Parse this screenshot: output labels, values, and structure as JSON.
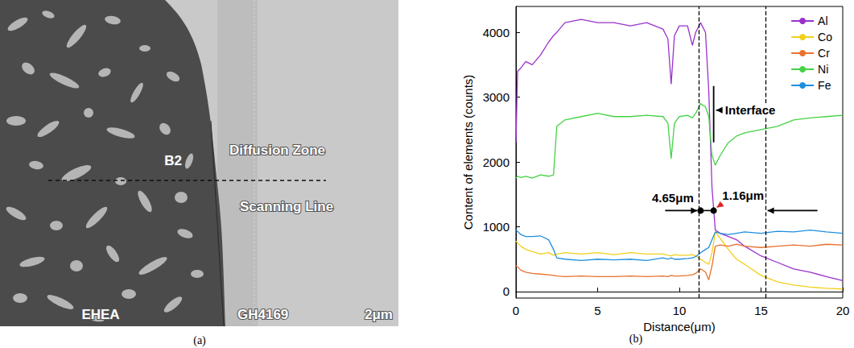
{
  "image_panel": {
    "caption": "(a)",
    "labels": [
      "Diffusion Zone",
      "B2",
      "Scanning Line",
      "EHEA",
      "GH4169"
    ],
    "scale_bar": "2μm"
  },
  "chart_data": {
    "type": "line",
    "caption": "(b)",
    "x_label": "Distance(μm)",
    "y_label": "Content of elements (counts)",
    "x": [
      0,
      0.1,
      0.3,
      0.6,
      1,
      1.5,
      2,
      2.3,
      2.5,
      3,
      4,
      5,
      6,
      7,
      8,
      9,
      9.3,
      9.5,
      9.7,
      10,
      10.5,
      10.8,
      11,
      11.3,
      11.6,
      11.8,
      12,
      12.2,
      12.5,
      13,
      13.5,
      14,
      15,
      16,
      17,
      18,
      19,
      20
    ],
    "series": [
      {
        "name": "Al",
        "color": "#9932cc",
        "values": [
          2300,
          3400,
          3450,
          3550,
          3500,
          3650,
          3850,
          3950,
          4000,
          4150,
          4200,
          4150,
          4150,
          4100,
          4150,
          4050,
          3900,
          3200,
          3950,
          4100,
          4100,
          3800,
          4000,
          4150,
          4000,
          3100,
          1600,
          950,
          900,
          850,
          800,
          700,
          550,
          450,
          350,
          300,
          230,
          170
        ]
      },
      {
        "name": "Co",
        "color": "#f2d01a",
        "values": [
          780,
          750,
          700,
          650,
          620,
          580,
          600,
          560,
          580,
          600,
          580,
          600,
          570,
          600,
          580,
          580,
          560,
          550,
          570,
          560,
          560,
          570,
          550,
          500,
          450,
          420,
          600,
          920,
          820,
          650,
          500,
          420,
          250,
          150,
          100,
          70,
          50,
          40
        ]
      },
      {
        "name": "Cr",
        "color": "#e8712e",
        "values": [
          400,
          380,
          330,
          300,
          280,
          270,
          260,
          250,
          240,
          230,
          240,
          230,
          230,
          240,
          230,
          240,
          230,
          250,
          240,
          240,
          250,
          260,
          280,
          350,
          300,
          180,
          400,
          700,
          720,
          700,
          730,
          700,
          680,
          700,
          720,
          700,
          730,
          720
        ]
      },
      {
        "name": "Ni",
        "color": "#45d245",
        "values": [
          1750,
          1780,
          1760,
          1780,
          1750,
          1800,
          1780,
          1800,
          2550,
          2650,
          2700,
          2750,
          2700,
          2700,
          2720,
          2700,
          2600,
          2050,
          2600,
          2700,
          2720,
          2680,
          2750,
          2900,
          2850,
          2700,
          2100,
          1950,
          2100,
          2300,
          2400,
          2450,
          2500,
          2550,
          2650,
          2680,
          2700,
          2720
        ]
      },
      {
        "name": "Fe",
        "color": "#1e8fe0",
        "values": [
          950,
          930,
          880,
          850,
          850,
          860,
          800,
          650,
          520,
          500,
          480,
          500,
          490,
          500,
          480,
          520,
          500,
          520,
          500,
          500,
          510,
          520,
          540,
          600,
          650,
          680,
          800,
          920,
          900,
          880,
          900,
          920,
          900,
          930,
          920,
          950,
          920,
          900
        ]
      }
    ],
    "xlim": [
      0,
      20
    ],
    "xticks": [
      0,
      5,
      10,
      15,
      20
    ],
    "ylim": [
      -100,
      4400
    ],
    "yticks": [
      0,
      1000,
      2000,
      3000,
      4000
    ],
    "grid": false,
    "legend": "upper right",
    "reference_lines": [
      11.2,
      15.3
    ],
    "points": [
      {
        "x": 11.3,
        "y": 1250
      },
      {
        "x": 12.1,
        "y": 1250
      }
    ],
    "annotations": [
      {
        "text": "Interface",
        "x": 12.7,
        "y": 2800
      },
      {
        "text": "4.65μm",
        "x": 9.6,
        "y": 1450
      },
      {
        "text": "1.16μm",
        "x": 13.9,
        "y": 1480
      }
    ]
  }
}
